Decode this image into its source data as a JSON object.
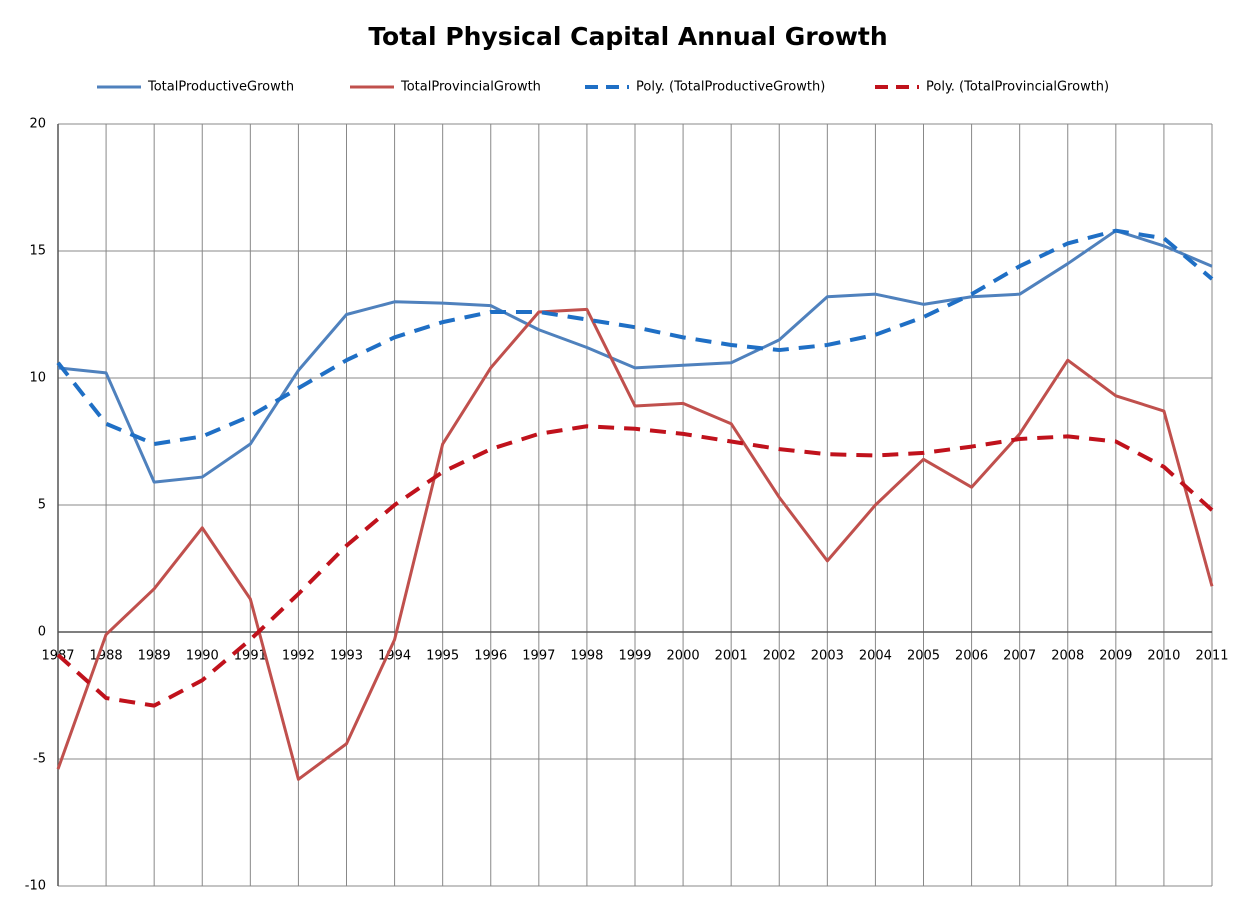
{
  "chart_data": {
    "type": "line",
    "title": "Total Physical Capital Annual Growth",
    "categories": [
      "1987",
      "1988",
      "1989",
      "1990",
      "1991",
      "1992",
      "1993",
      "1994",
      "1995",
      "1996",
      "1997",
      "1998",
      "1999",
      "2000",
      "2001",
      "2002",
      "2003",
      "2004",
      "2005",
      "2006",
      "2007",
      "2008",
      "2009",
      "2010",
      "2011"
    ],
    "series": [
      {
        "name": "TotalProductiveGrowth",
        "color": "#4f81bd",
        "style": "solid",
        "values": [
          10.4,
          10.2,
          5.9,
          6.1,
          7.4,
          10.3,
          12.5,
          13.0,
          12.95,
          12.85,
          11.9,
          11.2,
          10.4,
          10.5,
          10.6,
          11.5,
          13.2,
          13.3,
          12.9,
          13.2,
          13.3,
          14.5,
          15.8,
          15.2,
          14.4
        ]
      },
      {
        "name": "TotalProvincialGrowth",
        "color": "#c0504d",
        "style": "solid",
        "values": [
          -5.4,
          -0.1,
          1.7,
          4.1,
          1.3,
          -5.8,
          -4.4,
          -0.3,
          7.4,
          10.4,
          12.6,
          12.7,
          8.9,
          9.0,
          8.2,
          5.3,
          2.8,
          5.0,
          6.8,
          5.7,
          7.8,
          10.7,
          9.3,
          8.7,
          1.8
        ]
      },
      {
        "name": "Poly. (TotalProductiveGrowth)",
        "color": "#1f6fc5",
        "style": "dashed",
        "values": [
          10.6,
          8.2,
          7.4,
          7.7,
          8.5,
          9.6,
          10.7,
          11.6,
          12.2,
          12.6,
          12.6,
          12.3,
          12.0,
          11.6,
          11.3,
          11.1,
          11.3,
          11.7,
          12.4,
          13.3,
          14.4,
          15.3,
          15.8,
          15.5,
          13.9
        ]
      },
      {
        "name": "Poly. (TotalProvincialGrowth)",
        "color": "#c0121c",
        "style": "dashed",
        "values": [
          -0.9,
          -2.6,
          -2.9,
          -1.9,
          -0.3,
          1.5,
          3.4,
          5.0,
          6.3,
          7.2,
          7.8,
          8.1,
          8.0,
          7.8,
          7.5,
          7.2,
          7.0,
          6.95,
          7.05,
          7.3,
          7.6,
          7.7,
          7.5,
          6.5,
          4.8
        ]
      }
    ],
    "ylim": [
      -10,
      20
    ],
    "yticks": [
      -10,
      -5,
      0,
      5,
      10,
      15,
      20
    ],
    "grid": true,
    "legend": "top"
  }
}
